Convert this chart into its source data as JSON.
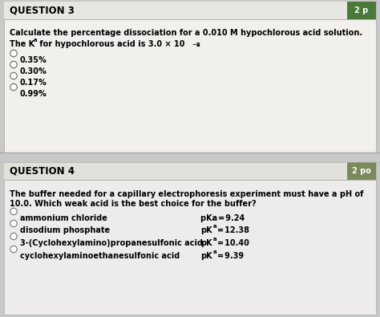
{
  "bg_color": "#c8c8c8",
  "q3_bg": "#f2f0ec",
  "q4_bg": "#edecea",
  "q3_header": "QUESTION 3",
  "q3_pts": "2 p",
  "q3_pts_bg": "#4a7a3a",
  "q3_line1": "Calculate the percentage dissociation for a 0.010 M hypochlorous acid solution.",
  "q3_options": [
    "0.35%",
    "0.30%",
    "0.17%",
    "0.99%"
  ],
  "q4_header": "QUESTION 4",
  "q4_pts": "2 po",
  "q4_pts_bg": "#7a8a5a",
  "q4_line1": "The buffer needed for a capillary electrophoresis experiment must have a pH of",
  "q4_line2": "10.0. Which weak acid is the best choice for the buffer?",
  "q4_options": [
    "ammonium chloride",
    "disodium phosphate",
    "3-(Cyclohexylamino)propanesulfonic acid",
    "cyclohexylaminoethanesulfonic acid"
  ],
  "q4_pka_vals": [
    "9.24",
    "12.38",
    "10.40",
    "9.39"
  ],
  "q4_pka_styles": [
    "Ka",
    "Ka",
    "Ka",
    "Ka"
  ]
}
